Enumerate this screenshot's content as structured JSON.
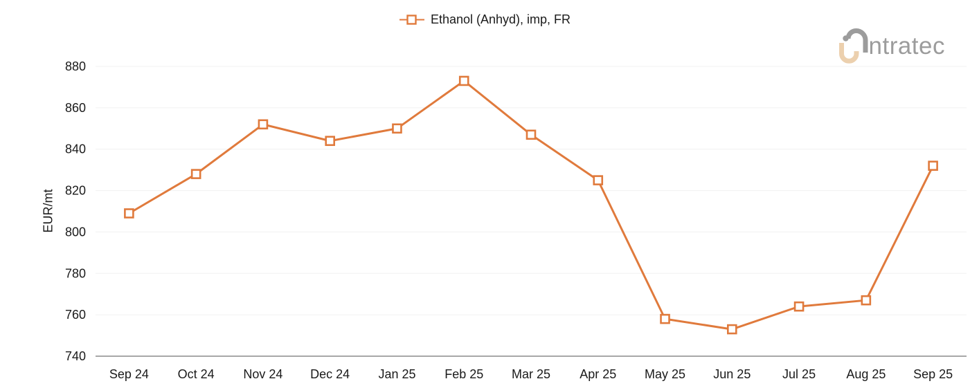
{
  "legend": {
    "label": "Ethanol (Anhyd), imp, FR"
  },
  "logo": {
    "text": "intratec"
  },
  "chart_data": {
    "type": "line",
    "title": "",
    "categories": [
      "Sep 24",
      "Oct 24",
      "Nov 24",
      "Dec 24",
      "Jan 25",
      "Feb 25",
      "Mar 25",
      "Apr 25",
      "May 25",
      "Jun 25",
      "Jul 25",
      "Aug 25",
      "Sep 25"
    ],
    "series": [
      {
        "name": "Ethanol (Anhyd), imp, FR",
        "values": [
          809,
          828,
          852,
          844,
          850,
          873,
          847,
          825,
          758,
          753,
          764,
          767,
          832
        ]
      }
    ],
    "xlabel": "",
    "ylabel": "EUR/mt",
    "ylim": [
      740,
      880
    ],
    "yticks": [
      740,
      760,
      780,
      800,
      820,
      840,
      860,
      880
    ],
    "grid": "horizontal",
    "legend_position": "top-center",
    "marker": "hollow-square",
    "colors": {
      "series": "#E07A3C",
      "marker_fill": "#FFFFFF",
      "text": "#1A1A1A",
      "grid": "#F0F0F0",
      "axis": "#8A8A8A",
      "logo_gray": "#9C9C9C",
      "logo_beige": "#ECD0AE"
    }
  }
}
